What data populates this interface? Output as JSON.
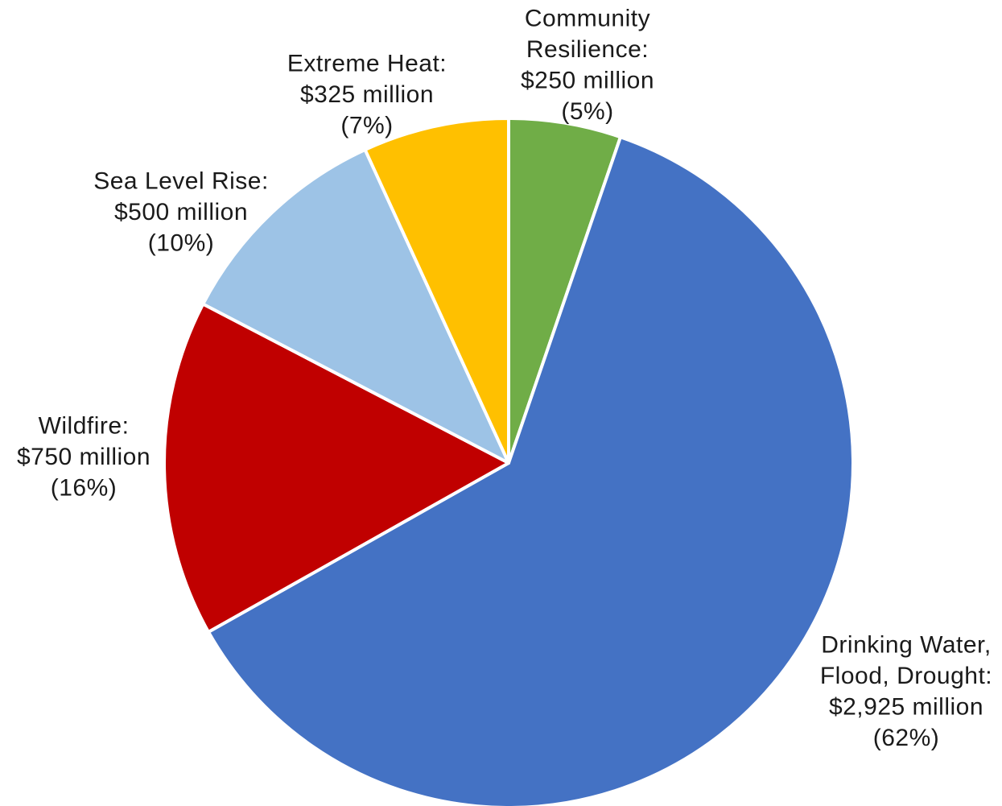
{
  "chart_data": {
    "type": "pie",
    "start_angle_deg": 0,
    "direction": "clockwise",
    "slice_border_color": "#ffffff",
    "slices": [
      {
        "key": "community-resilience",
        "label": "Community Resilience",
        "value": 250,
        "percent": 5,
        "color": "#70AD47",
        "label_lines": [
          "Community",
          "Resilience:",
          "$250 million",
          "(5%)"
        ]
      },
      {
        "key": "drinking-water-flood-drought",
        "label": "Drinking Water, Flood, Drought",
        "value": 2925,
        "percent": 62,
        "color": "#4472C4",
        "label_lines": [
          "Drinking Water,",
          "Flood, Drought:",
          "$2,925 million",
          "(62%)"
        ]
      },
      {
        "key": "wildfire",
        "label": "Wildfire",
        "value": 750,
        "percent": 16,
        "color": "#C00000",
        "label_lines": [
          "Wildfire:",
          "$750 million",
          "(16%)"
        ]
      },
      {
        "key": "sea-level-rise",
        "label": "Sea Level Rise",
        "value": 500,
        "percent": 10,
        "color": "#9DC3E6",
        "label_lines": [
          "Sea Level Rise:",
          "$500 million",
          "(10%)"
        ]
      },
      {
        "key": "extreme-heat",
        "label": "Extreme Heat",
        "value": 325,
        "percent": 7,
        "color": "#FFC000",
        "label_lines": [
          "Extreme Heat:",
          "$325 million",
          "(7%)"
        ]
      }
    ]
  }
}
